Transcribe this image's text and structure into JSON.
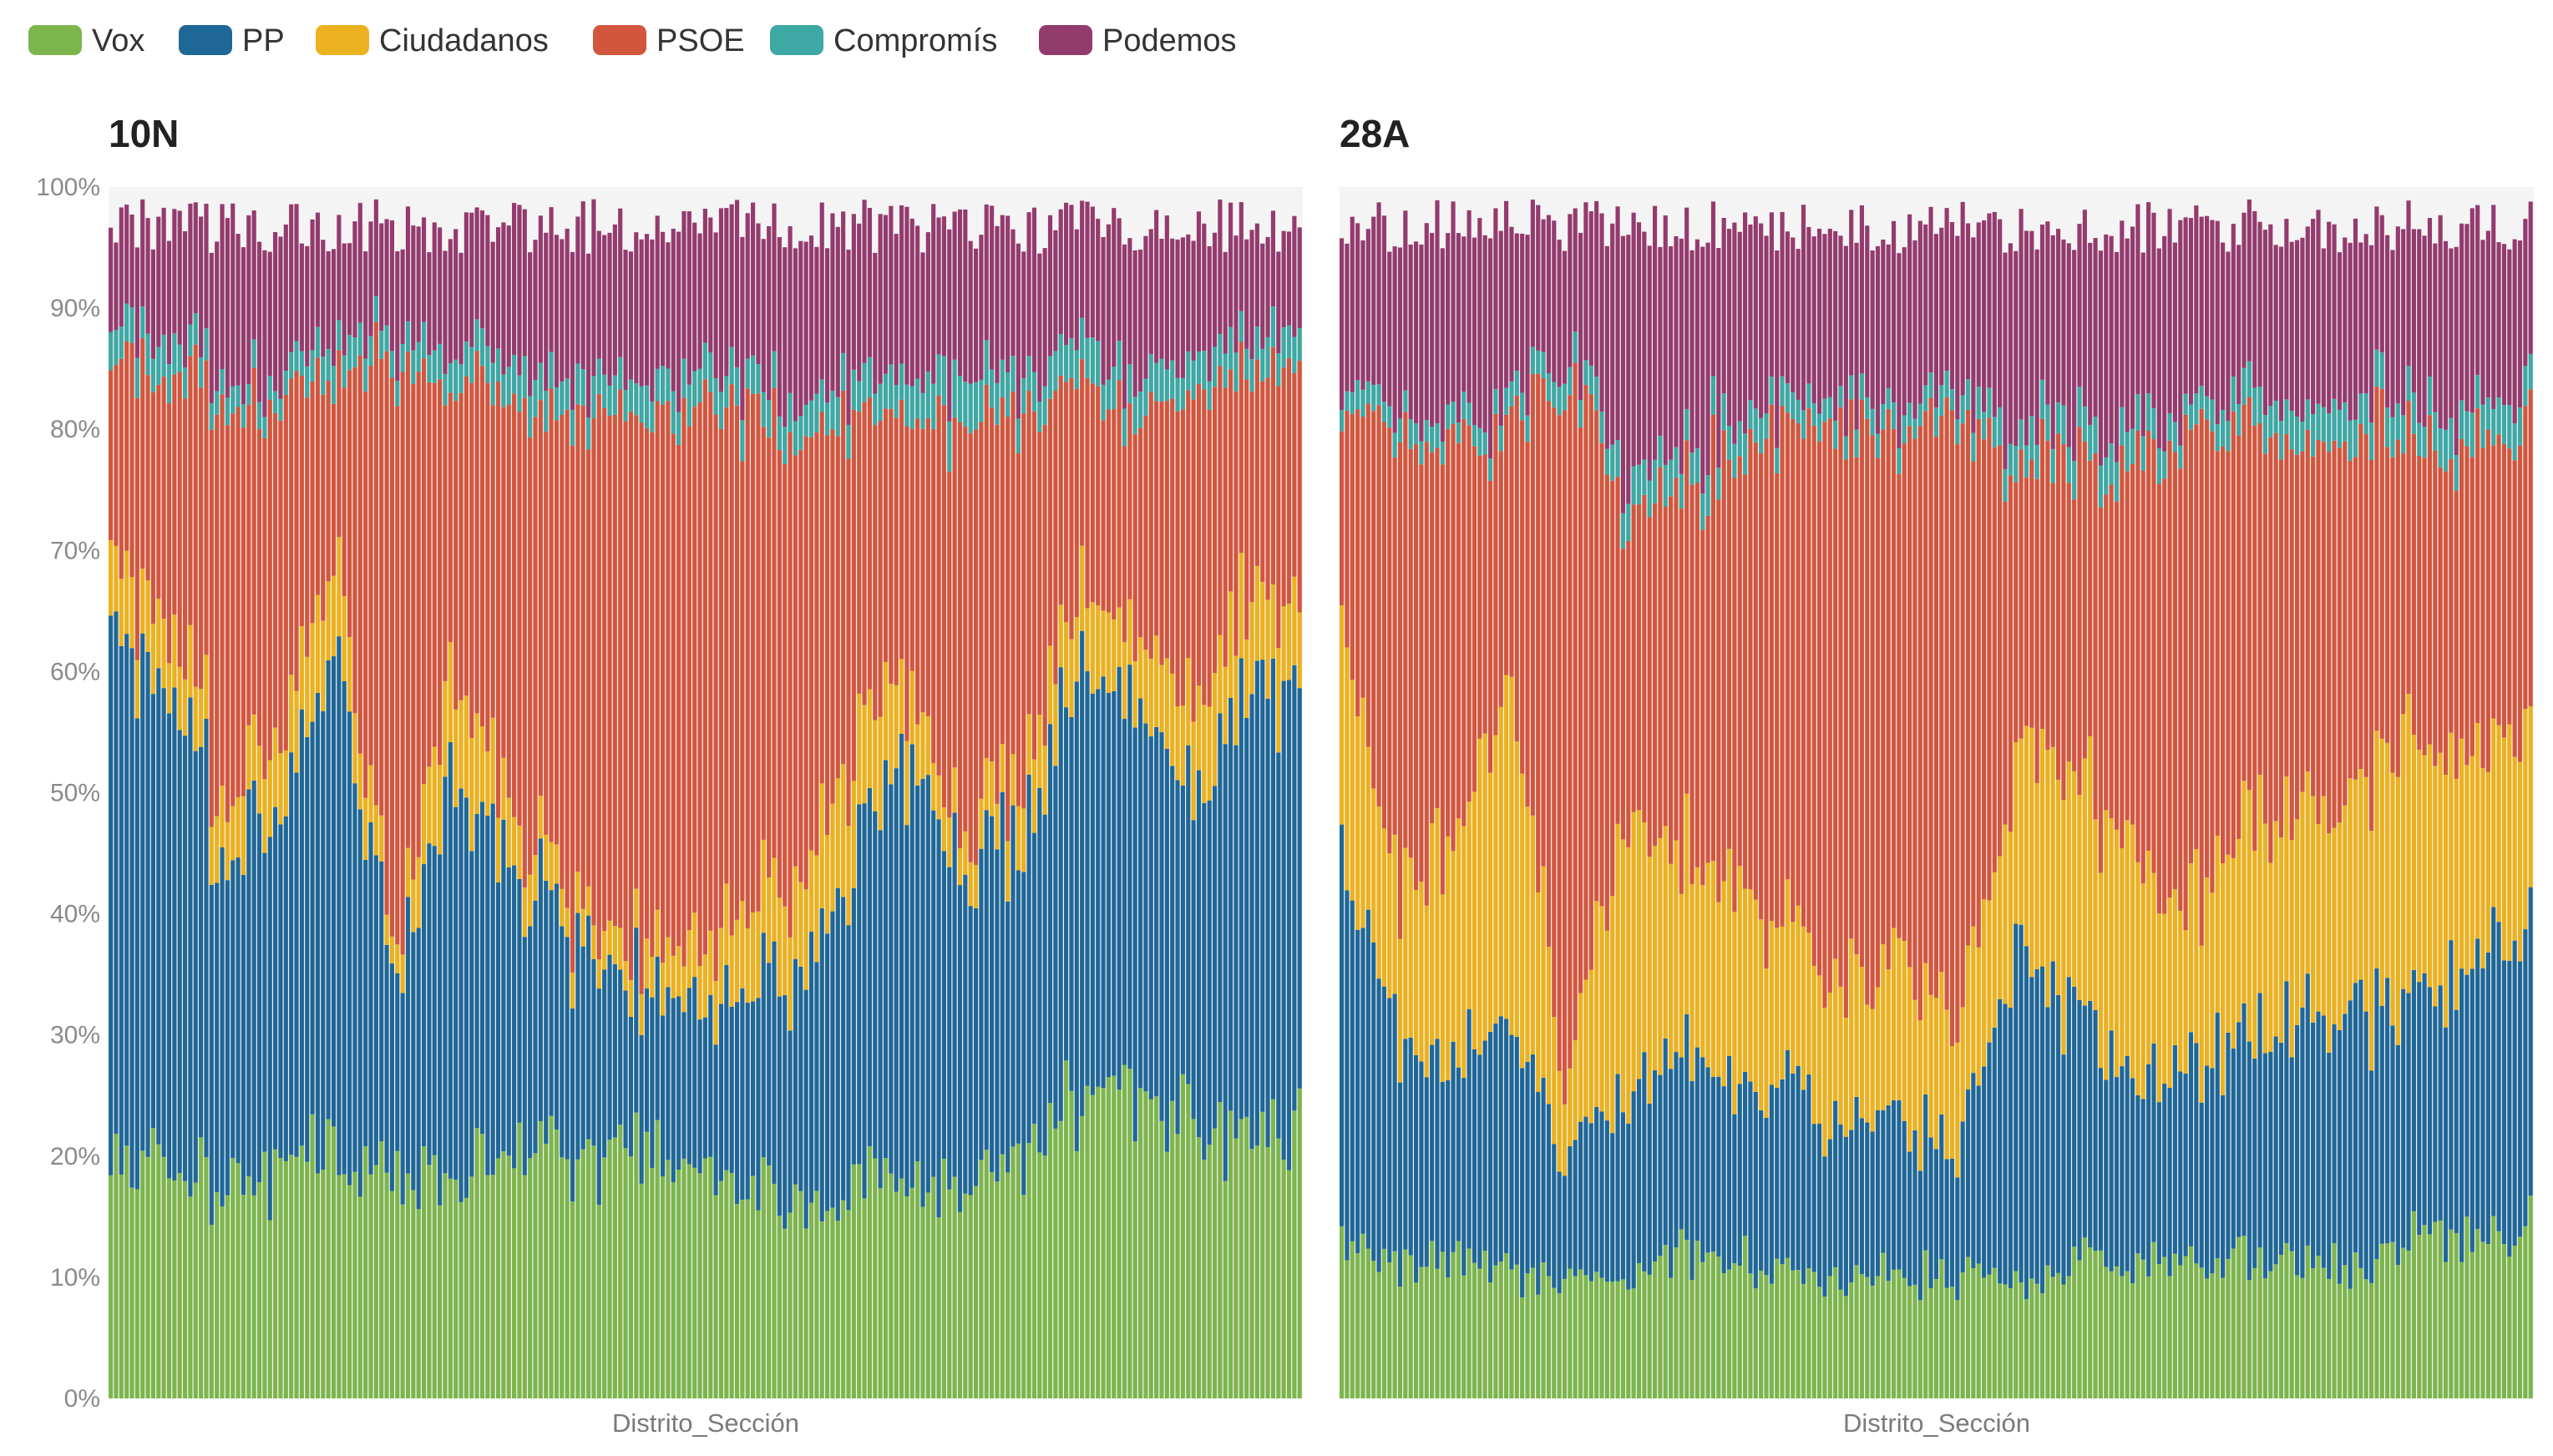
{
  "chart_data": {
    "type": "bar",
    "subtype": "stacked-100-percent",
    "legend": [
      {
        "name": "Vox",
        "color": "#7db54d"
      },
      {
        "name": "PP",
        "color": "#1f6797"
      },
      {
        "name": "Ciudadanos",
        "color": "#ebb11e"
      },
      {
        "name": "PSOE",
        "color": "#d2563e"
      },
      {
        "name": "Compromís",
        "color": "#3ea8a4"
      },
      {
        "name": "Podemos",
        "color": "#943b6e"
      }
    ],
    "y_axis": {
      "range": [
        0,
        100
      ],
      "ticks": [
        "0%",
        "10%",
        "20%",
        "30%",
        "40%",
        "50%",
        "60%",
        "70%",
        "80%",
        "90%",
        "100%"
      ]
    },
    "panels": [
      {
        "title": "10N",
        "xlabel": "Distrito_Sección",
        "bar_count": 225,
        "profile": [
          {
            "vox": 21,
            "pp": 43,
            "cs": 6,
            "psoe": 17,
            "comp": 3,
            "pod": 8
          },
          {
            "vox": 18,
            "pp": 40,
            "cs": 5,
            "psoe": 20,
            "comp": 3,
            "pod": 10
          },
          {
            "vox": 17,
            "pp": 28,
            "cs": 5,
            "psoe": 32,
            "comp": 2,
            "pod": 13
          },
          {
            "vox": 19,
            "pp": 30,
            "cs": 6,
            "psoe": 28,
            "comp": 2,
            "pod": 12
          },
          {
            "vox": 21,
            "pp": 42,
            "cs": 8,
            "psoe": 14,
            "comp": 3,
            "pod": 9
          },
          {
            "vox": 18,
            "pp": 15,
            "cs": 2,
            "psoe": 50,
            "comp": 2,
            "pod": 10
          },
          {
            "vox": 19,
            "pp": 34,
            "cs": 10,
            "psoe": 22,
            "comp": 3,
            "pod": 10
          },
          {
            "vox": 21,
            "pp": 24,
            "cs": 5,
            "psoe": 32,
            "comp": 3,
            "pod": 12
          },
          {
            "vox": 19,
            "pp": 20,
            "cs": 3,
            "psoe": 40,
            "comp": 3,
            "pod": 13
          },
          {
            "vox": 21,
            "pp": 14,
            "cs": 3,
            "psoe": 45,
            "comp": 3,
            "pod": 12
          },
          {
            "vox": 21,
            "pp": 13,
            "cs": 4,
            "psoe": 45,
            "comp": 3,
            "pod": 12
          },
          {
            "vox": 18,
            "pp": 15,
            "cs": 6,
            "psoe": 41,
            "comp": 3,
            "pod": 14
          },
          {
            "vox": 17,
            "pp": 18,
            "cs": 7,
            "psoe": 38,
            "comp": 3,
            "pod": 14
          },
          {
            "vox": 17,
            "pp": 26,
            "cs": 10,
            "psoe": 28,
            "comp": 3,
            "pod": 13
          },
          {
            "vox": 18,
            "pp": 34,
            "cs": 6,
            "psoe": 22,
            "comp": 3,
            "pod": 12
          },
          {
            "vox": 17,
            "pp": 27,
            "cs": 3,
            "psoe": 32,
            "comp": 4,
            "pod": 13
          },
          {
            "vox": 19,
            "pp": 25,
            "cs": 5,
            "psoe": 32,
            "comp": 3,
            "pod": 13
          },
          {
            "vox": 24,
            "pp": 35,
            "cs": 6,
            "psoe": 18,
            "comp": 3,
            "pod": 11
          },
          {
            "vox": 26,
            "pp": 33,
            "cs": 6,
            "psoe": 17,
            "comp": 3,
            "pod": 12
          },
          {
            "vox": 24,
            "pp": 27,
            "cs": 7,
            "psoe": 25,
            "comp": 3,
            "pod": 11
          },
          {
            "vox": 21,
            "pp": 36,
            "cs": 8,
            "psoe": 20,
            "comp": 3,
            "pod": 9
          },
          {
            "vox": 22,
            "pp": 37,
            "cs": 7,
            "psoe": 19,
            "comp": 3,
            "pod": 9
          }
        ]
      },
      {
        "title": "28A",
        "xlabel": "Distrito_Sección",
        "bar_count": 225,
        "profile": [
          {
            "vox": 13,
            "pp": 32,
            "cs": 20,
            "psoe": 17,
            "comp": 2,
            "pod": 13
          },
          {
            "vox": 11,
            "pp": 18,
            "cs": 12,
            "psoe": 38,
            "comp": 2,
            "pod": 15
          },
          {
            "vox": 12,
            "pp": 16,
            "cs": 18,
            "psoe": 32,
            "comp": 2,
            "pod": 16
          },
          {
            "vox": 10,
            "pp": 20,
            "cs": 28,
            "psoe": 22,
            "comp": 2,
            "pod": 14
          },
          {
            "vox": 9,
            "pp": 10,
            "cs": 5,
            "psoe": 59,
            "comp": 2,
            "pod": 10
          },
          {
            "vox": 10,
            "pp": 15,
            "cs": 22,
            "psoe": 26,
            "comp": 3,
            "pod": 20
          },
          {
            "vox": 12,
            "pp": 17,
            "cs": 16,
            "psoe": 30,
            "comp": 3,
            "pod": 18
          },
          {
            "vox": 11,
            "pp": 14,
            "cs": 16,
            "psoe": 36,
            "comp": 3,
            "pod": 16
          },
          {
            "vox": 10,
            "pp": 15,
            "cs": 12,
            "psoe": 44,
            "comp": 2,
            "pod": 14
          },
          {
            "vox": 10,
            "pp": 13,
            "cs": 12,
            "psoe": 46,
            "comp": 2,
            "pod": 14
          },
          {
            "vox": 10,
            "pp": 12,
            "cs": 13,
            "psoe": 46,
            "comp": 2,
            "pod": 14
          },
          {
            "vox": 10,
            "pp": 12,
            "cs": 10,
            "psoe": 49,
            "comp": 2,
            "pod": 14
          },
          {
            "vox": 10,
            "pp": 28,
            "cs": 16,
            "psoe": 24,
            "comp": 3,
            "pod": 16
          },
          {
            "vox": 11,
            "pp": 20,
            "cs": 20,
            "psoe": 26,
            "comp": 3,
            "pod": 16
          },
          {
            "vox": 11,
            "pp": 15,
            "cs": 18,
            "psoe": 32,
            "comp": 3,
            "pod": 18
          },
          {
            "vox": 11,
            "pp": 16,
            "cs": 13,
            "psoe": 40,
            "comp": 2,
            "pod": 16
          },
          {
            "vox": 11,
            "pp": 18,
            "cs": 18,
            "psoe": 32,
            "comp": 3,
            "pod": 14
          },
          {
            "vox": 11,
            "pp": 20,
            "cs": 17,
            "psoe": 30,
            "comp": 3,
            "pod": 16
          },
          {
            "vox": 11,
            "pp": 22,
            "cs": 18,
            "psoe": 29,
            "comp": 3,
            "pod": 14
          },
          {
            "vox": 13,
            "pp": 20,
            "cs": 22,
            "psoe": 25,
            "comp": 3,
            "pod": 14
          },
          {
            "vox": 13,
            "pp": 22,
            "cs": 18,
            "psoe": 25,
            "comp": 3,
            "pod": 15
          },
          {
            "vox": 14,
            "pp": 25,
            "cs": 16,
            "psoe": 24,
            "comp": 3,
            "pod": 14
          }
        ]
      }
    ]
  }
}
